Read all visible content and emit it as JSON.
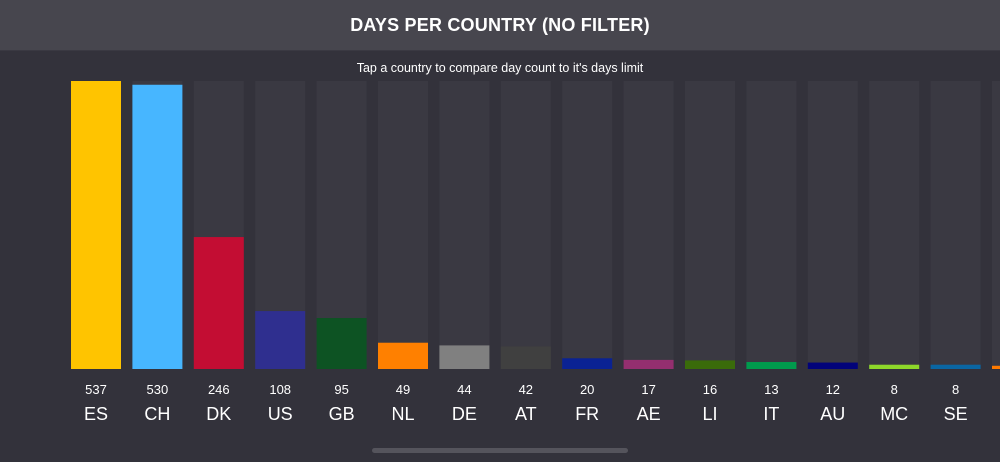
{
  "header": {
    "title": "DAYS PER COUNTRY (NO FILTER)"
  },
  "subtitle": "Tap a country to compare day count to it's days limit",
  "chart_data": {
    "type": "bar",
    "title": "DAYS PER COUNTRY (NO FILTER)",
    "subtitle": "Tap a country to compare day count to it's days limit",
    "xlabel": "",
    "ylabel": "",
    "ylim": [
      0,
      537
    ],
    "grid": false,
    "legend": "none",
    "categories": [
      "ES",
      "CH",
      "DK",
      "US",
      "GB",
      "NL",
      "DE",
      "AT",
      "FR",
      "AE",
      "LI",
      "IT",
      "AU",
      "MC",
      "SE",
      ""
    ],
    "values": [
      537,
      530,
      246,
      108,
      95,
      49,
      44,
      42,
      20,
      17,
      16,
      13,
      12,
      8,
      8,
      6
    ],
    "value_labels": [
      "537",
      "530",
      "246",
      "108",
      "95",
      "49",
      "44",
      "42",
      "20",
      "17",
      "16",
      "13",
      "12",
      "8",
      "8",
      ""
    ],
    "colors": [
      "#ffc400",
      "#47b6ff",
      "#c30d33",
      "#2f2f8f",
      "#0d5323",
      "#ff8000",
      "#808080",
      "#404040",
      "#0a2293",
      "#942f6f",
      "#3a6b0a",
      "#009a4d",
      "#02037a",
      "#8ed82a",
      "#0a66a3",
      "#ff7a00"
    ]
  }
}
